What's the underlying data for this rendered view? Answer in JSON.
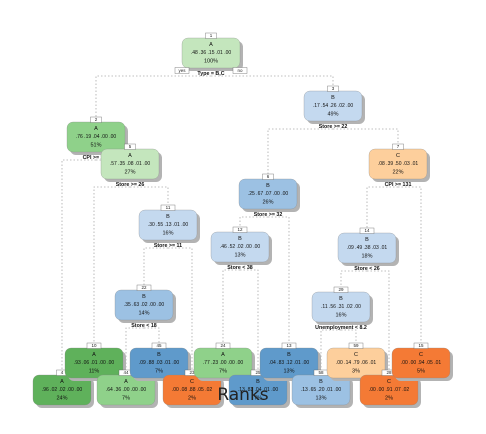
{
  "title": "Ranks",
  "palette": {
    "A_dark": "#5fb15b",
    "A_mid": "#8fd18a",
    "A_light": "#c4e6bd",
    "B_light": "#c4d9ef",
    "B_mid": "#9cc1e3",
    "B_dark": "#5f9acb",
    "C_light": "#fdcf9c",
    "C_dark": "#f47a35",
    "edge": "#aaaaaa",
    "shadow": "#b3b3b3"
  },
  "nodes": [
    {
      "id": "n1",
      "num": "1",
      "cls": "A",
      "probs": ".48  .36  .15  .01  .00",
      "pct": "100%",
      "split": "Type = B,C",
      "color": "A_light"
    },
    {
      "id": "n2",
      "num": "2",
      "cls": "A",
      "probs": ".76  .19  .04  .00  .00",
      "pct": "51%",
      "split": "CPI >= 162",
      "color": "A_mid"
    },
    {
      "id": "n3",
      "num": "3",
      "cls": "B",
      "probs": ".17  .54  .26  .02  .00",
      "pct": "49%",
      "split": "Store >= 22",
      "color": "B_light"
    },
    {
      "id": "n5",
      "num": "5",
      "cls": "A",
      "probs": ".57  .35  .08  .01  .00",
      "pct": "27%",
      "split": "Store >= 26",
      "color": "A_light"
    },
    {
      "id": "n6",
      "num": "6",
      "cls": "B",
      "probs": ".25  .67  .07  .00  .00",
      "pct": "26%",
      "split": "Store >= 32",
      "color": "B_mid"
    },
    {
      "id": "n7",
      "num": "7",
      "cls": "C",
      "probs": ".08  .39  .50  .03  .01",
      "pct": "22%",
      "split": "CPI >= 131",
      "color": "C_light"
    },
    {
      "id": "n11",
      "num": "11",
      "cls": "B",
      "probs": ".30  .55  .13  .01  .00",
      "pct": "16%",
      "split": "Store >= 11",
      "color": "B_light"
    },
    {
      "id": "n12",
      "num": "12",
      "cls": "B",
      "probs": ".46  .52  .02  .00  .00",
      "pct": "13%",
      "split": "Store < 38",
      "color": "B_light"
    },
    {
      "id": "n14",
      "num": "14",
      "cls": "B",
      "probs": ".09  .49  .38  .03  .01",
      "pct": "18%",
      "split": "Store < 26",
      "color": "B_light"
    },
    {
      "id": "n22",
      "num": "22",
      "cls": "B",
      "probs": ".35  .63  .02  .00  .00",
      "pct": "14%",
      "split": "Store < 18",
      "color": "B_mid"
    },
    {
      "id": "n29",
      "num": "29",
      "cls": "B",
      "probs": ".11  .56  .31  .02  .00",
      "pct": "16%",
      "split": "Unemployment < 8.2",
      "color": "B_light"
    },
    {
      "id": "n4",
      "num": "4",
      "cls": "A",
      "probs": ".96  .02  .02  .00  .00",
      "pct": "24%",
      "split": "",
      "color": "A_dark"
    },
    {
      "id": "n10",
      "num": "10",
      "cls": "A",
      "probs": ".93  .06  .01  .00  .00",
      "pct": "11%",
      "split": "",
      "color": "A_dark"
    },
    {
      "id": "n44",
      "num": "44",
      "cls": "A",
      "probs": ".64  .36  .00  .00  .00",
      "pct": "7%",
      "split": "",
      "color": "A_mid"
    },
    {
      "id": "n45",
      "num": "45",
      "cls": "B",
      "probs": ".09  .88  .03  .01  .00",
      "pct": "7%",
      "split": "",
      "color": "B_dark"
    },
    {
      "id": "n23",
      "num": "23",
      "cls": "C",
      "probs": ".00  .08  .88  .05  .02",
      "pct": "2%",
      "split": "",
      "color": "C_dark"
    },
    {
      "id": "n24",
      "num": "24",
      "cls": "A",
      "probs": ".77  .23  .00  .00  .00",
      "pct": "7%",
      "split": "",
      "color": "A_mid"
    },
    {
      "id": "n25",
      "num": "25",
      "cls": "B",
      "probs": ".13  .83  .04  .01  .00",
      "pct": "7%",
      "split": "",
      "color": "B_dark"
    },
    {
      "id": "n13",
      "num": "13",
      "cls": "B",
      "probs": ".04  .83  .12  .01  .00",
      "pct": "13%",
      "split": "",
      "color": "B_dark"
    },
    {
      "id": "n58",
      "num": "58",
      "cls": "B",
      "probs": ".13  .65  .20  .01  .00",
      "pct": "13%",
      "split": "",
      "color": "B_mid"
    },
    {
      "id": "n59",
      "num": "59",
      "cls": "C",
      "probs": ".00  .14  .79  .06  .01",
      "pct": "3%",
      "split": "",
      "color": "C_light"
    },
    {
      "id": "n28",
      "num": "28",
      "cls": "C",
      "probs": ".00  .00  .91  .07  .02",
      "pct": "2%",
      "split": "",
      "color": "C_dark"
    },
    {
      "id": "n15",
      "num": "15",
      "cls": "C",
      "probs": ".00  .00  .94  .05  .01",
      "pct": "5%",
      "split": "",
      "color": "C_dark"
    }
  ],
  "root_branches": {
    "left": "yes",
    "right": "no"
  }
}
